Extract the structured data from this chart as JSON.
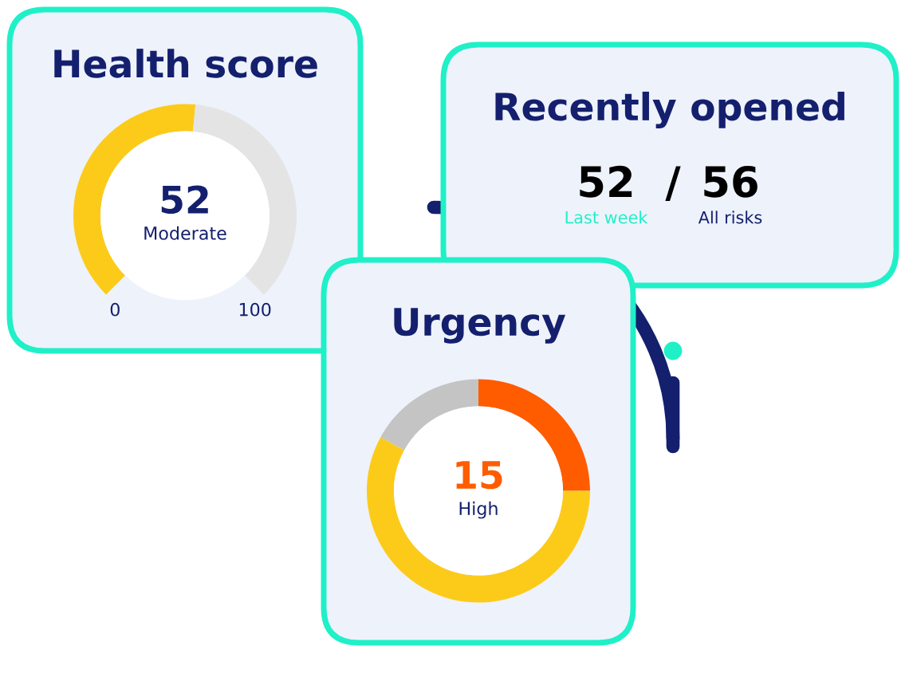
{
  "chart_data": [
    {
      "type": "donut",
      "title": "Health score",
      "categories": [
        null,
        null
      ],
      "values": [
        52,
        48
      ],
      "colors": [
        "#fccb1a",
        "#e4e4e4"
      ],
      "annotations": [
        "52",
        "Moderate",
        "0",
        "100"
      ]
    },
    {
      "type": "other",
      "title": "Recently opened",
      "annotations": [
        "52",
        "/",
        "56",
        "Last week",
        "All risks"
      ]
    },
    {
      "type": "donut",
      "title": "Urgency",
      "categories": [
        null,
        null,
        null
      ],
      "values": [
        25,
        58,
        17
      ],
      "colors": [
        "#ff5c00",
        "#fccb1a",
        "#c4c4c4"
      ],
      "annotations": [
        "15",
        "High"
      ]
    }
  ]
}
